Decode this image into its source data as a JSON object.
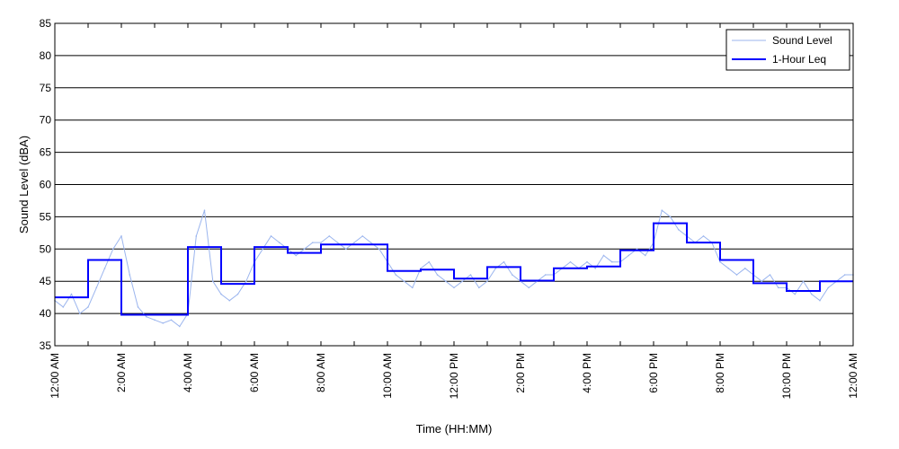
{
  "chart_data": {
    "type": "line",
    "title": "",
    "xlabel": "Time (HH:MM)",
    "ylabel": "Sound Level (dBA)",
    "ylim": [
      35,
      85
    ],
    "yticks": [
      35,
      40,
      45,
      50,
      55,
      60,
      65,
      70,
      75,
      80,
      85
    ],
    "xlim_hours": [
      0,
      24
    ],
    "xticks": [
      {
        "hour": 0,
        "label": "12:00 AM"
      },
      {
        "hour": 2,
        "label": "2:00 AM"
      },
      {
        "hour": 4,
        "label": "4:00 AM"
      },
      {
        "hour": 6,
        "label": "6:00 AM"
      },
      {
        "hour": 8,
        "label": "8:00 AM"
      },
      {
        "hour": 10,
        "label": "10:00 AM"
      },
      {
        "hour": 12,
        "label": "12:00 PM"
      },
      {
        "hour": 14,
        "label": "2:00 PM"
      },
      {
        "hour": 16,
        "label": "4:00 PM"
      },
      {
        "hour": 18,
        "label": "6:00 PM"
      },
      {
        "hour": 20,
        "label": "8:00 PM"
      },
      {
        "hour": 22,
        "label": "10:00 PM"
      },
      {
        "hour": 24,
        "label": "12:00 AM"
      }
    ],
    "grid": "horizontal",
    "legend_position": "top-right",
    "series": [
      {
        "name": "Sound Level",
        "color": "#9bb5ee",
        "x": [
          0,
          0.25,
          0.5,
          0.75,
          1,
          1.25,
          1.5,
          1.75,
          2,
          2.25,
          2.5,
          2.75,
          3,
          3.25,
          3.5,
          3.75,
          4,
          4.25,
          4.5,
          4.75,
          5,
          5.25,
          5.5,
          5.75,
          6,
          6.25,
          6.5,
          6.75,
          7,
          7.25,
          7.5,
          7.75,
          8,
          8.25,
          8.5,
          8.75,
          9,
          9.25,
          9.5,
          9.75,
          10,
          10.25,
          10.5,
          10.75,
          11,
          11.25,
          11.5,
          11.75,
          12,
          12.25,
          12.5,
          12.75,
          13,
          13.25,
          13.5,
          13.75,
          14,
          14.25,
          14.5,
          14.75,
          15,
          15.25,
          15.5,
          15.75,
          16,
          16.25,
          16.5,
          16.75,
          17,
          17.25,
          17.5,
          17.75,
          18,
          18.25,
          18.5,
          18.75,
          19,
          19.25,
          19.5,
          19.75,
          20,
          20.25,
          20.5,
          20.75,
          21,
          21.25,
          21.5,
          21.75,
          22,
          22.25,
          22.5,
          22.75,
          23,
          23.25,
          23.5,
          23.75,
          24
        ],
        "y": [
          42,
          41,
          43,
          40,
          41,
          44,
          47,
          50,
          52,
          46,
          41,
          39.5,
          39,
          38.5,
          39,
          38,
          40,
          52,
          56,
          45,
          43,
          42,
          43,
          45,
          48,
          50,
          52,
          51,
          50,
          49,
          50,
          51,
          51,
          52,
          51,
          50,
          51,
          52,
          51,
          50,
          48,
          46,
          45,
          44,
          47,
          48,
          46,
          45,
          44,
          45,
          46,
          44,
          45,
          47,
          48,
          46,
          45,
          44,
          45,
          46,
          46,
          47,
          48,
          47,
          48,
          47,
          49,
          48,
          48,
          49,
          50,
          49,
          51,
          56,
          55,
          53,
          52,
          51,
          52,
          51,
          48,
          47,
          46,
          47,
          46,
          45,
          46,
          44,
          44,
          43,
          45,
          43,
          42,
          44,
          45,
          46,
          46
        ]
      },
      {
        "name": "1-Hour Leq",
        "color": "#0000ff",
        "x": [
          0,
          1,
          2,
          3,
          4,
          5,
          6,
          7,
          8,
          9,
          10,
          11,
          12,
          13,
          14,
          15,
          16,
          17,
          18,
          19,
          20,
          21,
          22,
          23
        ],
        "y": [
          42.5,
          48.3,
          39.8,
          39.8,
          50.3,
          44.6,
          50.3,
          49.4,
          50.7,
          50.7,
          46.6,
          46.8,
          45.4,
          47.2,
          45.1,
          47.0,
          47.3,
          49.8,
          54.0,
          51.0,
          48.3,
          44.7,
          43.5,
          45.0
        ]
      }
    ]
  }
}
